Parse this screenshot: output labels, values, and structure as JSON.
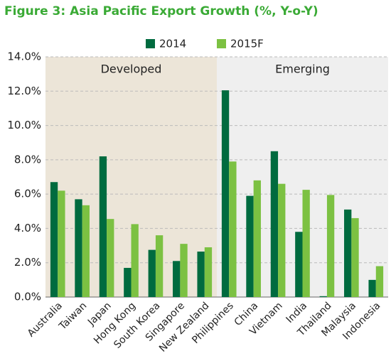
{
  "chart_data": {
    "type": "bar",
    "title": "Figure 3: Asia Pacific Export Growth (%, Y-o-Y)",
    "groups": [
      {
        "name": "Developed",
        "color": "#ece5d8",
        "categories": [
          "Australia",
          "Taiwan",
          "Japan",
          "Hong Kong",
          "South Korea",
          "Singapore",
          "New Zealand"
        ]
      },
      {
        "name": "Emerging",
        "color": "#efefef",
        "categories": [
          "Philippines",
          "China",
          "Vietnam",
          "India",
          "Thailand",
          "Malaysia",
          "Indonesia"
        ]
      }
    ],
    "series": [
      {
        "name": "2014",
        "color": "#006b3f",
        "values": [
          6.7,
          5.7,
          8.2,
          1.7,
          2.75,
          2.1,
          2.65,
          12.05,
          5.9,
          8.5,
          3.8,
          0.05,
          5.1,
          1.0
        ]
      },
      {
        "name": "2015F",
        "color": "#7cc142",
        "values": [
          6.2,
          5.35,
          4.55,
          4.25,
          3.6,
          3.1,
          2.9,
          7.9,
          6.8,
          6.6,
          6.25,
          5.95,
          4.6,
          1.8
        ]
      }
    ],
    "ylim": [
      0,
      14
    ],
    "yticks": [
      {
        "value": 0,
        "label": "0.0%"
      },
      {
        "value": 2,
        "label": "2.0%"
      },
      {
        "value": 4,
        "label": "4.0%"
      },
      {
        "value": 6,
        "label": "6.0%"
      },
      {
        "value": 8,
        "label": "8.0%"
      },
      {
        "value": 10,
        "label": "10.0%"
      },
      {
        "value": 12,
        "label": "12.0%"
      },
      {
        "value": 14,
        "label": "14.0%"
      }
    ],
    "grid": true
  }
}
